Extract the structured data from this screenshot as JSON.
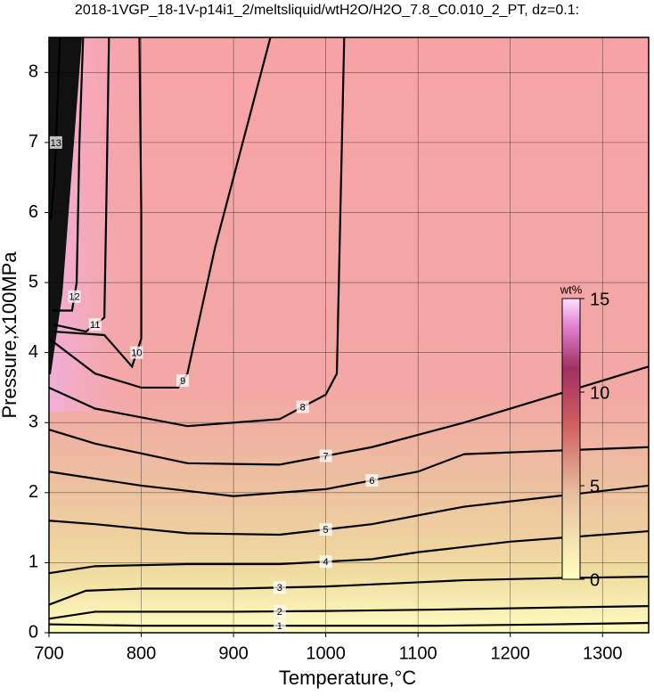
{
  "chart_data": {
    "type": "contour",
    "title": "2018-1VGP_18-1V-p14i1_2/meltsliquid/wtH2O/H2O_7.8_C0.010_2_PT, dz=0.1:",
    "xlabel": "Temperature,°C",
    "ylabel": "Pressure,x100MPa",
    "xlim": [
      700,
      1350
    ],
    "ylim": [
      0,
      8.5
    ],
    "xticks": [
      700,
      800,
      900,
      1000,
      1100,
      1200,
      1300
    ],
    "yticks": [
      0,
      1,
      2,
      3,
      4,
      5,
      6,
      7,
      8
    ],
    "grid": true,
    "contours": [
      {
        "level": 1,
        "x": [
          700,
          800,
          900,
          1000,
          1120,
          1250,
          1350
        ],
        "y": [
          0.12,
          0.1,
          0.1,
          0.1,
          0.1,
          0.12,
          0.14
        ]
      },
      {
        "level": 2,
        "x": [
          700,
          750,
          900,
          1000,
          1120,
          1250,
          1350
        ],
        "y": [
          0.2,
          0.3,
          0.3,
          0.31,
          0.33,
          0.36,
          0.38
        ]
      },
      {
        "level": 3,
        "x": [
          700,
          740,
          800,
          900,
          1000,
          1100,
          1150,
          1250,
          1350
        ],
        "y": [
          0.4,
          0.6,
          0.63,
          0.63,
          0.66,
          0.72,
          0.75,
          0.78,
          0.8
        ]
      },
      {
        "level": 4,
        "x": [
          700,
          750,
          850,
          950,
          1050,
          1100,
          1200,
          1350
        ],
        "y": [
          0.85,
          0.95,
          0.98,
          0.98,
          1.05,
          1.15,
          1.3,
          1.45
        ]
      },
      {
        "level": 5,
        "x": [
          700,
          750,
          850,
          950,
          1050,
          1150,
          1250,
          1350
        ],
        "y": [
          1.6,
          1.55,
          1.42,
          1.4,
          1.55,
          1.8,
          1.95,
          2.1
        ]
      },
      {
        "level": 6,
        "x": [
          700,
          800,
          900,
          1000,
          1100,
          1150,
          1250,
          1350
        ],
        "y": [
          2.3,
          2.1,
          1.95,
          2.05,
          2.3,
          2.55,
          2.6,
          2.65
        ]
      },
      {
        "level": 7,
        "x": [
          700,
          750,
          850,
          950,
          1050,
          1150,
          1250,
          1350
        ],
        "y": [
          2.9,
          2.7,
          2.42,
          2.4,
          2.65,
          3.0,
          3.4,
          3.8
        ]
      },
      {
        "level": 8,
        "x": [
          700,
          750,
          850,
          950,
          1000,
          1012,
          1015,
          1020
        ],
        "y": [
          3.5,
          3.2,
          2.95,
          3.05,
          3.4,
          3.7,
          5.5,
          8.5
        ]
      },
      {
        "level": 9,
        "x": [
          700,
          750,
          800,
          840,
          850,
          880,
          920,
          940
        ],
        "y": [
          4.2,
          3.7,
          3.5,
          3.5,
          3.7,
          5.5,
          7.5,
          8.5
        ]
      },
      {
        "level": 10,
        "x": [
          705,
          760,
          790,
          800,
          800,
          798
        ],
        "y": [
          4.3,
          4.25,
          3.8,
          4.2,
          6.0,
          8.5
        ]
      },
      {
        "level": 11,
        "x": [
          705,
          740,
          760,
          762,
          765
        ],
        "y": [
          4.4,
          4.3,
          4.5,
          6.0,
          8.5
        ]
      },
      {
        "level": 12,
        "x": [
          703,
          725,
          730,
          733,
          737
        ],
        "y": [
          4.6,
          4.6,
          5.0,
          7.0,
          8.5
        ]
      },
      {
        "level": 13,
        "x": [
          702,
          706,
          709,
          712
        ],
        "y": [
          5.9,
          6.5,
          7.5,
          8.5
        ]
      }
    ],
    "colorbar": {
      "label": "wt%",
      "lim": [
        0,
        15
      ],
      "ticks": [
        0,
        5,
        10,
        15
      ]
    }
  }
}
